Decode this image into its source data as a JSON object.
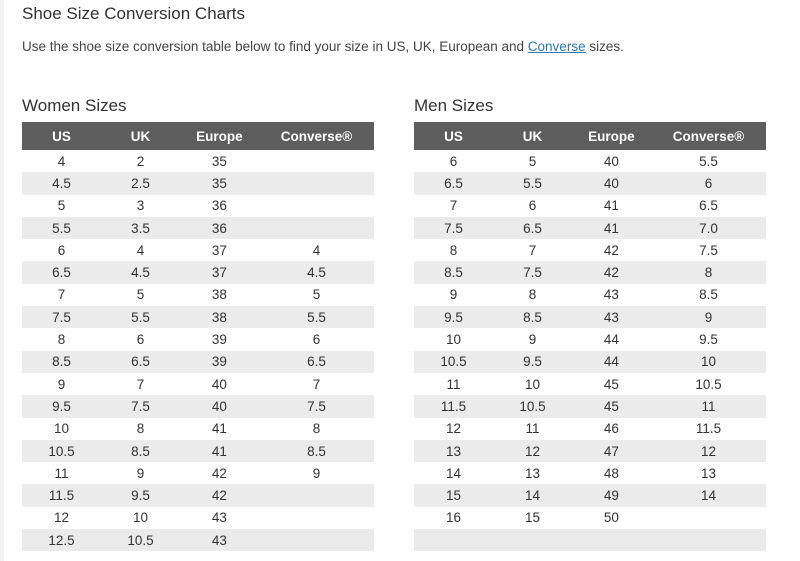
{
  "header": {
    "title": "Shoe Size Conversion Charts",
    "intro_before": "Use the shoe size conversion table below to find your size in US, UK, European and ",
    "intro_link": "Converse",
    "intro_after": " sizes."
  },
  "women": {
    "title": "Women Sizes",
    "columns": [
      "US",
      "UK",
      "Europe",
      "Converse®"
    ],
    "rows": [
      [
        "4",
        "2",
        "35",
        ""
      ],
      [
        "4.5",
        "2.5",
        "35",
        ""
      ],
      [
        "5",
        "3",
        "36",
        ""
      ],
      [
        "5.5",
        "3.5",
        "36",
        ""
      ],
      [
        "6",
        "4",
        "37",
        "4"
      ],
      [
        "6.5",
        "4.5",
        "37",
        "4.5"
      ],
      [
        "7",
        "5",
        "38",
        "5"
      ],
      [
        "7.5",
        "5.5",
        "38",
        "5.5"
      ],
      [
        "8",
        "6",
        "39",
        "6"
      ],
      [
        "8.5",
        "6.5",
        "39",
        "6.5"
      ],
      [
        "9",
        "7",
        "40",
        "7"
      ],
      [
        "9.5",
        "7.5",
        "40",
        "7.5"
      ],
      [
        "10",
        "8",
        "41",
        "8"
      ],
      [
        "10.5",
        "8.5",
        "41",
        "8.5"
      ],
      [
        "11",
        "9",
        "42",
        "9"
      ],
      [
        "11.5",
        "9.5",
        "42",
        ""
      ],
      [
        "12",
        "10",
        "43",
        ""
      ],
      [
        "12.5",
        "10.5",
        "43",
        ""
      ]
    ]
  },
  "men": {
    "title": "Men Sizes",
    "columns": [
      "US",
      "UK",
      "Europe",
      "Converse®"
    ],
    "rows": [
      [
        "6",
        "5",
        "40",
        "5.5"
      ],
      [
        "6.5",
        "5.5",
        "40",
        "6"
      ],
      [
        "7",
        "6",
        "41",
        "6.5"
      ],
      [
        "7.5",
        "6.5",
        "41",
        "7.0"
      ],
      [
        "8",
        "7",
        "42",
        "7.5"
      ],
      [
        "8.5",
        "7.5",
        "42",
        "8"
      ],
      [
        "9",
        "8",
        "43",
        "8.5"
      ],
      [
        "9.5",
        "8.5",
        "43",
        "9"
      ],
      [
        "10",
        "9",
        "44",
        "9.5"
      ],
      [
        "10.5",
        "9.5",
        "44",
        "10"
      ],
      [
        "11",
        "10",
        "45",
        "10.5"
      ],
      [
        "11.5",
        "10.5",
        "45",
        "11"
      ],
      [
        "12",
        "11",
        "46",
        "11.5"
      ],
      [
        "13",
        "12",
        "47",
        "12"
      ],
      [
        "14",
        "13",
        "48",
        "13"
      ],
      [
        "15",
        "14",
        "49",
        "14"
      ],
      [
        "16",
        "15",
        "50",
        ""
      ],
      [
        "",
        "",
        "",
        ""
      ]
    ]
  }
}
